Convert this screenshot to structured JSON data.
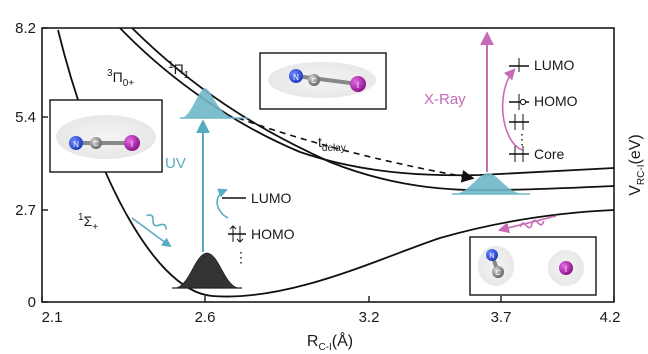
{
  "axes": {
    "x_ticks": [
      "2.1",
      "2.6",
      "3.2",
      "3.7",
      "4.2"
    ],
    "y_ticks": [
      "8.2",
      "5.4",
      "2.7",
      "0"
    ],
    "x_title": {
      "main": "R",
      "sub": "C-I",
      "unit": "(Å)"
    },
    "y_title": {
      "main": "V",
      "sub": "RC-I",
      "unit": "(eV)"
    }
  },
  "states": {
    "ground": {
      "sup": "1",
      "main": "Σ",
      "sub": "+"
    },
    "pi0": {
      "sup": "3",
      "main": "Π",
      "sub": "0+"
    },
    "pi1": {
      "sup": "1",
      "main": "Π",
      "sub": "1"
    }
  },
  "labels": {
    "uv": "UV",
    "xray": "X-Ray",
    "t_delay": {
      "main": "t",
      "sub": "delay"
    },
    "left_orbitals": {
      "lumo": "LUMO",
      "homo": "HOMO",
      "dots": "⋮"
    },
    "right_orbitals": {
      "lumo": "LUMO",
      "homo": "HOMO",
      "core": "Core",
      "dots": "⋮"
    }
  },
  "atoms": {
    "nitrogen": "N",
    "carbon": "C",
    "iodine": "I"
  },
  "colors": {
    "uv": "#5aaac2",
    "xray": "#c66bb8",
    "wavepacket_excited": "#6fb7c9",
    "wavepacket_ground": "#333333",
    "nitrogen": "#1f3fbf",
    "carbon": "#7a7a7a",
    "iodine": "#9c1d9c"
  }
}
